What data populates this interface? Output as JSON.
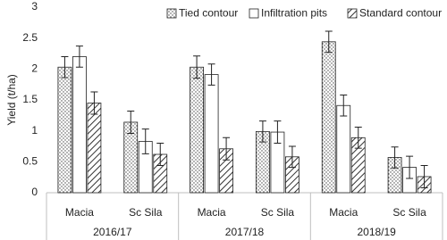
{
  "chart_data": {
    "type": "bar",
    "y_label": "Yield (t/ha)",
    "groups": [
      "2016/17",
      "2017/18",
      "2018/19"
    ],
    "categories": [
      "Macia",
      "Sc Sila",
      "Macia",
      "Sc Sila",
      "Macia",
      "Sc Sila"
    ],
    "series": [
      {
        "name": "Tied contour",
        "color": "#ffffff",
        "pattern": "dots",
        "values": [
          2.03,
          1.14,
          2.03,
          0.99,
          2.44,
          0.57
        ],
        "errors": [
          0.17,
          0.18,
          0.18,
          0.17,
          0.17,
          0.17
        ]
      },
      {
        "name": "Infiltration pits",
        "color": "#ffffff",
        "pattern": "none",
        "values": [
          2.2,
          0.83,
          1.91,
          0.98,
          1.41,
          0.41
        ],
        "errors": [
          0.17,
          0.2,
          0.17,
          0.18,
          0.17,
          0.18
        ]
      },
      {
        "name": "Standard contour",
        "color": "#ffffff",
        "pattern": "hatch",
        "values": [
          1.45,
          0.62,
          0.71,
          0.58,
          0.89,
          0.26
        ],
        "errors": [
          0.18,
          0.18,
          0.18,
          0.17,
          0.17,
          0.18
        ]
      }
    ],
    "ylim": [
      0,
      3
    ],
    "yticks": [
      0,
      0.5,
      1,
      1.5,
      2,
      2.5,
      3
    ],
    "grid": false,
    "legend": "top-right"
  }
}
